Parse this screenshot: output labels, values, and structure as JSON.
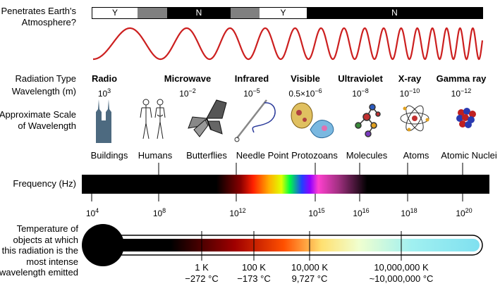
{
  "atmosphere": {
    "label_line1": "Penetrates Earth's",
    "label_line2": "Atmosphere?",
    "segments": [
      "Y",
      "",
      "N",
      "",
      "Y",
      "N"
    ]
  },
  "row_labels": {
    "radiation_type": "Radiation Type",
    "wavelength": "Wavelength (m)",
    "scale_line1": "Approximate Scale",
    "scale_line2": "of Wavelength",
    "frequency": "Frequency (Hz)",
    "temp_line1": "Temperature of",
    "temp_line2": "objects at which",
    "temp_line3": "this radiation is the",
    "temp_line4": "most intense",
    "temp_line5": "wavelength emitted"
  },
  "radiation_types": [
    {
      "name": "Radio",
      "wave_base": "10",
      "wave_exp": "3"
    },
    {
      "name": "Microwave",
      "wave_base": "10",
      "wave_exp": "−2"
    },
    {
      "name": "Infrared",
      "wave_base": "10",
      "wave_exp": "−5"
    },
    {
      "name": "Visible",
      "wave_base": "0.5×10",
      "wave_exp": "−6"
    },
    {
      "name": "Ultraviolet",
      "wave_base": "10",
      "wave_exp": "−8"
    },
    {
      "name": "X-ray",
      "wave_base": "10",
      "wave_exp": "−10"
    },
    {
      "name": "Gamma ray",
      "wave_base": "10",
      "wave_exp": "−12"
    }
  ],
  "scale_items": [
    {
      "label": "Buildings",
      "icon": "buildings-icon"
    },
    {
      "label": "Humans",
      "icon": "humans-icon"
    },
    {
      "label": "Butterflies",
      "icon": "butterfly-icon"
    },
    {
      "label": "Needle Point",
      "icon": "needle-icon"
    },
    {
      "label": "Protozoans",
      "icon": "protozoan-icon"
    },
    {
      "label": "Molecules",
      "icon": "molecule-icon"
    },
    {
      "label": "Atoms",
      "icon": "atom-icon"
    },
    {
      "label": "Atomic Nuclei",
      "icon": "nucleus-icon"
    }
  ],
  "frequency_ticks": [
    {
      "base": "10",
      "exp": "4"
    },
    {
      "base": "10",
      "exp": "8"
    },
    {
      "base": "10",
      "exp": "12"
    },
    {
      "base": "10",
      "exp": "15"
    },
    {
      "base": "10",
      "exp": "16"
    },
    {
      "base": "10",
      "exp": "18"
    },
    {
      "base": "10",
      "exp": "20"
    }
  ],
  "temperatures": [
    {
      "kelvin": "1 K",
      "celsius": "−272 °C"
    },
    {
      "kelvin": "100 K",
      "celsius": "−173 °C"
    },
    {
      "kelvin": "10,000 K",
      "celsius": "9,727 °C"
    },
    {
      "kelvin": "10,000,000 K",
      "celsius": "~10,000,000 °C"
    }
  ],
  "colors": {
    "wave": "#cc1f1f",
    "building": "#4d6a80",
    "thermo_end": "#7fe0f0"
  }
}
